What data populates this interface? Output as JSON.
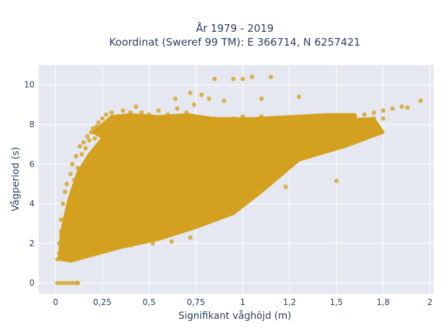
{
  "chart_data": {
    "type": "scatter",
    "title_lines": [
      "År 1979 - 2019",
      "Koordinat (Sweref 99 TM): E 366714, N 6257421"
    ],
    "xlabel": "Signifikant våghöjd (m)",
    "ylabel": "Vågperiod (s)",
    "xlim": [
      -0.09,
      2.02
    ],
    "ylim": [
      -0.55,
      11.0
    ],
    "x_ticks": [
      0,
      0.25,
      0.5,
      0.75,
      1.0,
      1.25,
      1.5,
      1.75,
      2.0
    ],
    "x_tick_labels": [
      "0",
      "0,25",
      "0,5",
      "0,75",
      "1",
      "1,2",
      "1,5",
      "1,8",
      "2"
    ],
    "y_ticks": [
      0,
      2,
      4,
      6,
      8,
      10
    ],
    "y_tick_labels": [
      "0",
      "2",
      "4",
      "6",
      "8",
      "10"
    ],
    "grid": true,
    "marker_color": "#D4A020",
    "plot_background": "#E5E8F0",
    "series": [
      {
        "values_note": "dense point cloud represented by sampled points",
        "points": [
          [
            0.01,
            0.0
          ],
          [
            0.03,
            0.0
          ],
          [
            0.05,
            0.0
          ],
          [
            0.07,
            0.0
          ],
          [
            0.09,
            0.0
          ],
          [
            0.11,
            0.0
          ],
          [
            0.12,
            0.0
          ],
          [
            0.01,
            1.2
          ],
          [
            0.02,
            1.5
          ],
          [
            0.02,
            2.0
          ],
          [
            0.03,
            2.6
          ],
          [
            0.03,
            3.2
          ],
          [
            0.04,
            4.0
          ],
          [
            0.05,
            4.6
          ],
          [
            0.06,
            5.0
          ],
          [
            0.07,
            3.6
          ],
          [
            0.08,
            5.5
          ],
          [
            0.09,
            6.0
          ],
          [
            0.1,
            5.2
          ],
          [
            0.11,
            6.4
          ],
          [
            0.12,
            5.8
          ],
          [
            0.13,
            6.9
          ],
          [
            0.14,
            6.5
          ],
          [
            0.15,
            7.1
          ],
          [
            0.16,
            6.8
          ],
          [
            0.17,
            7.4
          ],
          [
            0.18,
            7.2
          ],
          [
            0.19,
            7.6
          ],
          [
            0.2,
            7.8
          ],
          [
            0.21,
            7.3
          ],
          [
            0.22,
            7.9
          ],
          [
            0.23,
            8.1
          ],
          [
            0.25,
            8.3
          ],
          [
            0.27,
            8.5
          ],
          [
            0.3,
            8.6
          ],
          [
            0.33,
            8.4
          ],
          [
            0.36,
            8.7
          ],
          [
            0.4,
            8.6
          ],
          [
            0.43,
            8.9
          ],
          [
            0.46,
            8.6
          ],
          [
            0.5,
            8.5
          ],
          [
            0.55,
            8.7
          ],
          [
            0.6,
            8.5
          ],
          [
            0.65,
            8.8
          ],
          [
            0.7,
            8.6
          ],
          [
            0.74,
            9.0
          ],
          [
            0.78,
            9.5
          ],
          [
            0.82,
            9.3
          ],
          [
            0.85,
            10.3
          ],
          [
            0.95,
            10.3
          ],
          [
            1.0,
            10.3
          ],
          [
            1.05,
            10.4
          ],
          [
            1.15,
            10.4
          ],
          [
            0.64,
            9.3
          ],
          [
            0.72,
            9.6
          ],
          [
            1.3,
            9.4
          ],
          [
            0.9,
            9.2
          ],
          [
            1.1,
            9.3
          ],
          [
            0.05,
            1.3
          ],
          [
            0.1,
            1.4
          ],
          [
            0.15,
            1.6
          ],
          [
            0.2,
            1.7
          ],
          [
            0.25,
            1.9
          ],
          [
            0.3,
            2.0
          ],
          [
            0.35,
            2.1
          ],
          [
            0.4,
            2.1
          ],
          [
            0.45,
            2.2
          ],
          [
            0.5,
            2.3
          ],
          [
            0.55,
            2.4
          ],
          [
            0.6,
            2.5
          ],
          [
            0.65,
            2.6
          ],
          [
            0.7,
            2.8
          ],
          [
            0.75,
            3.0
          ],
          [
            0.8,
            3.2
          ],
          [
            0.85,
            3.4
          ],
          [
            0.9,
            3.6
          ],
          [
            0.95,
            3.8
          ],
          [
            0.25,
            3.0
          ],
          [
            0.3,
            3.2
          ],
          [
            0.35,
            3.4
          ],
          [
            0.4,
            3.6
          ],
          [
            0.45,
            3.9
          ],
          [
            0.5,
            4.2
          ],
          [
            0.55,
            4.5
          ],
          [
            0.6,
            4.8
          ],
          [
            0.65,
            5.0
          ],
          [
            0.7,
            5.3
          ],
          [
            0.75,
            5.5
          ],
          [
            0.8,
            5.8
          ],
          [
            0.85,
            6.0
          ],
          [
            0.9,
            6.2
          ],
          [
            0.95,
            6.4
          ],
          [
            1.0,
            6.6
          ],
          [
            1.05,
            6.8
          ],
          [
            1.1,
            7.0
          ],
          [
            1.15,
            7.1
          ],
          [
            1.2,
            7.3
          ],
          [
            1.25,
            7.5
          ],
          [
            1.3,
            7.6
          ],
          [
            1.35,
            7.8
          ],
          [
            1.4,
            7.9
          ],
          [
            1.45,
            8.0
          ],
          [
            1.5,
            8.1
          ],
          [
            1.55,
            8.2
          ],
          [
            1.6,
            8.4
          ],
          [
            1.65,
            8.5
          ],
          [
            1.7,
            8.6
          ],
          [
            1.75,
            8.7
          ],
          [
            1.8,
            8.8
          ],
          [
            1.85,
            8.9
          ],
          [
            1.88,
            8.85
          ],
          [
            1.95,
            9.2
          ],
          [
            1.65,
            8.1
          ],
          [
            1.7,
            8.3
          ],
          [
            1.75,
            8.3
          ],
          [
            1.6,
            8.0
          ],
          [
            1.55,
            7.8
          ],
          [
            1.25,
            7.0
          ],
          [
            1.3,
            7.2
          ],
          [
            1.35,
            7.4
          ],
          [
            1.4,
            7.5
          ],
          [
            1.45,
            7.6
          ],
          [
            1.2,
            6.8
          ],
          [
            1.1,
            6.5
          ],
          [
            1.05,
            6.2
          ],
          [
            1.0,
            6.0
          ],
          [
            0.95,
            5.8
          ],
          [
            0.9,
            5.6
          ],
          [
            0.85,
            5.4
          ],
          [
            0.8,
            5.2
          ],
          [
            0.75,
            5.0
          ],
          [
            1.5,
            5.15
          ],
          [
            1.23,
            4.85
          ],
          [
            1.12,
            6.0
          ],
          [
            0.35,
            7.0
          ],
          [
            0.4,
            7.4
          ],
          [
            0.45,
            7.7
          ],
          [
            0.5,
            7.8
          ],
          [
            0.55,
            8.0
          ],
          [
            0.6,
            8.1
          ],
          [
            0.65,
            8.0
          ],
          [
            0.7,
            8.2
          ],
          [
            0.75,
            8.2
          ],
          [
            0.8,
            8.1
          ],
          [
            0.85,
            8.3
          ],
          [
            0.9,
            8.2
          ],
          [
            0.95,
            8.3
          ],
          [
            1.0,
            8.4
          ],
          [
            1.05,
            8.2
          ],
          [
            1.1,
            8.4
          ],
          [
            0.3,
            6.0
          ],
          [
            0.35,
            5.5
          ],
          [
            0.4,
            6.2
          ],
          [
            0.45,
            6.5
          ],
          [
            0.5,
            6.8
          ],
          [
            0.55,
            7.0
          ],
          [
            0.6,
            7.1
          ],
          [
            0.65,
            7.3
          ],
          [
            0.2,
            5.0
          ],
          [
            0.25,
            5.5
          ],
          [
            0.15,
            4.5
          ],
          [
            0.1,
            4.0
          ],
          [
            0.28,
            4.2
          ],
          [
            0.33,
            4.8
          ],
          [
            0.22,
            3.5
          ],
          [
            0.18,
            2.8
          ],
          [
            0.12,
            2.2
          ],
          [
            0.08,
            1.8
          ],
          [
            0.27,
            2.5
          ],
          [
            0.38,
            2.8
          ],
          [
            0.48,
            3.2
          ],
          [
            0.58,
            3.5
          ],
          [
            0.68,
            3.8
          ],
          [
            0.78,
            4.2
          ],
          [
            0.88,
            4.6
          ],
          [
            0.98,
            5.0
          ],
          [
            1.08,
            5.4
          ],
          [
            1.18,
            5.8
          ],
          [
            0.4,
            1.9
          ],
          [
            0.52,
            2.0
          ],
          [
            0.62,
            2.1
          ],
          [
            0.72,
            2.3
          ]
        ]
      }
    ]
  }
}
